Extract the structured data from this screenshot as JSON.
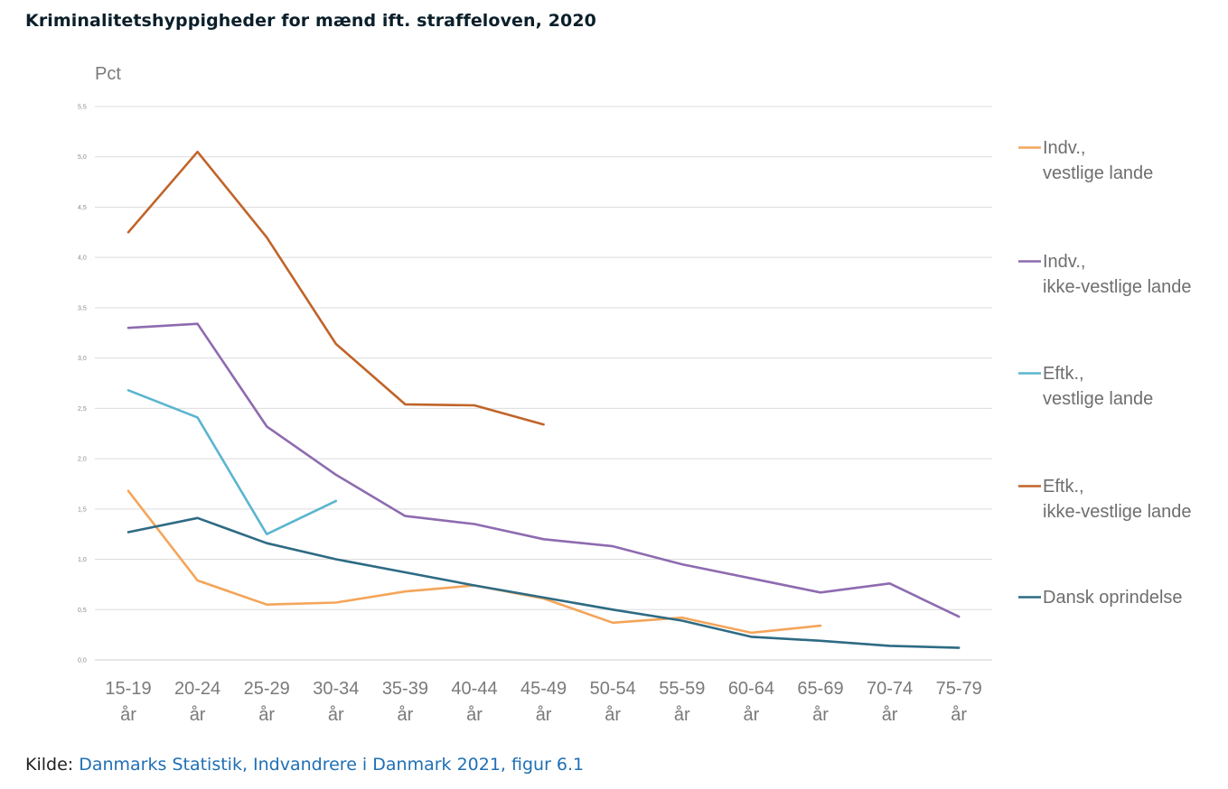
{
  "page": {
    "title": "Kriminalitetshyppigheder for mænd ift. straffeloven, 2020",
    "source_label": "Kilde:",
    "source_link": "Danmarks Statistik, Indvandrere i Danmark 2021, figur 6.1"
  },
  "chart_data": {
    "type": "line",
    "title": "",
    "unit_label": "Pct",
    "xlabel": "",
    "ylabel": "",
    "ylim": [
      0,
      5.5
    ],
    "yticks": [
      "0,0",
      "0,5",
      "1,0",
      "1,5",
      "2,0",
      "2,5",
      "3,0",
      "3,5",
      "4,0",
      "4,5",
      "5,0",
      "5,5"
    ],
    "grid": true,
    "legend_position": "right",
    "categories": [
      [
        "15-19",
        "år"
      ],
      [
        "20-24",
        "år"
      ],
      [
        "25-29",
        "år"
      ],
      [
        "30-34",
        "år"
      ],
      [
        "35-39",
        "år"
      ],
      [
        "40-44",
        "år"
      ],
      [
        "45-49",
        "år"
      ],
      [
        "50-54",
        "år"
      ],
      [
        "55-59",
        "år"
      ],
      [
        "60-64",
        "år"
      ],
      [
        "65-69",
        "år"
      ],
      [
        "70-74",
        "år"
      ],
      [
        "75-79",
        "år"
      ]
    ],
    "series": [
      {
        "name": [
          "Indv.,",
          "vestlige lande"
        ],
        "color": "#f4a55a",
        "values": [
          1.68,
          0.79,
          0.55,
          0.57,
          0.68,
          0.74,
          0.61,
          0.37,
          0.42,
          0.27,
          0.34,
          null,
          null
        ]
      },
      {
        "name": [
          "Indv.,",
          "ikke-vestlige lande"
        ],
        "color": "#8e6bb0",
        "values": [
          3.3,
          3.34,
          2.32,
          1.84,
          1.43,
          1.35,
          1.2,
          1.13,
          0.95,
          0.81,
          0.67,
          0.76,
          0.43
        ]
      },
      {
        "name": [
          "Eftk.,",
          "vestlige lande"
        ],
        "color": "#5bb5cf",
        "values": [
          2.68,
          2.41,
          1.25,
          1.58,
          null,
          null,
          null,
          null,
          null,
          null,
          null,
          null,
          null
        ]
      },
      {
        "name": [
          "Eftk.,",
          "ikke-vestlige lande"
        ],
        "color": "#c0642a",
        "values": [
          4.25,
          5.05,
          4.2,
          3.14,
          2.54,
          2.53,
          2.34,
          null,
          null,
          null,
          null,
          null,
          null
        ]
      },
      {
        "name": [
          "Dansk oprindelse"
        ],
        "color": "#2e6b84",
        "values": [
          1.27,
          1.41,
          1.16,
          1.0,
          0.87,
          0.74,
          0.62,
          0.5,
          0.39,
          0.23,
          0.19,
          0.14,
          0.12
        ]
      }
    ]
  }
}
